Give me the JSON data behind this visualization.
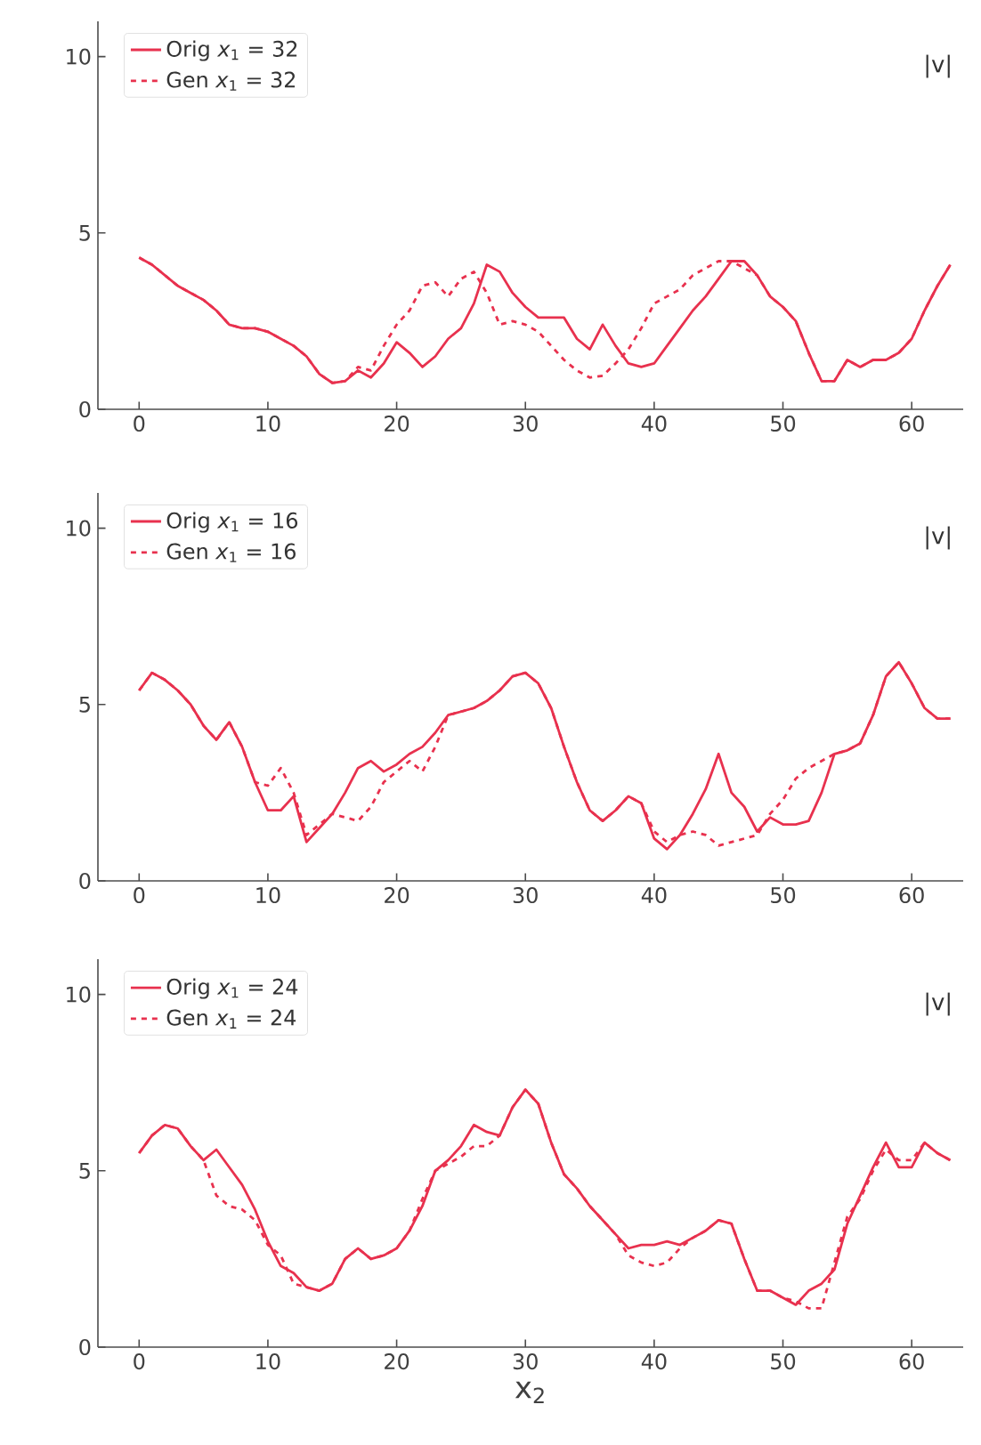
{
  "chart_data": [
    {
      "type": "line",
      "x": [
        0,
        1,
        2,
        3,
        4,
        5,
        6,
        7,
        8,
        9,
        10,
        11,
        12,
        13,
        14,
        15,
        16,
        17,
        18,
        19,
        20,
        21,
        22,
        23,
        24,
        25,
        26,
        27,
        28,
        29,
        30,
        31,
        32,
        33,
        34,
        35,
        36,
        37,
        38,
        39,
        40,
        41,
        42,
        43,
        44,
        45,
        46,
        47,
        48,
        49,
        50,
        51,
        52,
        53,
        54,
        55,
        56,
        57,
        58,
        59,
        60,
        61,
        62,
        63
      ],
      "series": [
        {
          "name": "Orig *x*$_{1}$ = 32",
          "color": "#e8314e",
          "line_style": "solid",
          "values": [
            4.3,
            4.1,
            3.8,
            3.5,
            3.3,
            3.1,
            2.8,
            2.4,
            2.3,
            2.3,
            2.2,
            2.0,
            1.8,
            1.5,
            1.0,
            0.75,
            0.8,
            1.1,
            0.9,
            1.3,
            1.9,
            1.6,
            1.2,
            1.5,
            2.0,
            2.3,
            3.0,
            4.1,
            3.9,
            3.3,
            2.9,
            2.6,
            2.6,
            2.6,
            2.0,
            1.7,
            2.4,
            1.8,
            1.3,
            1.2,
            1.3,
            1.8,
            2.3,
            2.8,
            3.2,
            3.7,
            4.2,
            4.2,
            3.8,
            3.2,
            2.9,
            2.5,
            1.6,
            0.8,
            0.8,
            1.4,
            1.2,
            1.4,
            1.4,
            1.6,
            2.0,
            2.8,
            3.5,
            4.1
          ]
        },
        {
          "name": "Gen *x*$_{1}$ = 32",
          "color": "#e8314e",
          "line_style": "dashed",
          "values": [
            4.3,
            4.1,
            3.8,
            3.5,
            3.3,
            3.1,
            2.8,
            2.4,
            2.3,
            2.3,
            2.2,
            2.0,
            1.8,
            1.5,
            1.0,
            0.75,
            0.8,
            1.2,
            1.1,
            1.8,
            2.4,
            2.8,
            3.5,
            3.6,
            3.2,
            3.7,
            3.9,
            3.3,
            2.4,
            2.5,
            2.4,
            2.2,
            1.8,
            1.4,
            1.1,
            0.9,
            0.95,
            1.3,
            1.7,
            2.3,
            3.0,
            3.2,
            3.4,
            3.8,
            4.0,
            4.2,
            4.2,
            4.0,
            3.8,
            3.2,
            2.9,
            2.5,
            1.6,
            0.8,
            0.8,
            1.4,
            1.2,
            1.4,
            1.4,
            1.6,
            2.0,
            2.8,
            3.5,
            4.1
          ]
        }
      ],
      "xlim": [
        -3.2,
        64
      ],
      "ylim": [
        0,
        11
      ],
      "xticks": [
        0,
        10,
        20,
        30,
        40,
        50,
        60
      ],
      "yticks": [
        0,
        5,
        10
      ],
      "legend": "top left",
      "annotations": [
        "|v|"
      ]
    },
    {
      "type": "line",
      "x": [
        0,
        1,
        2,
        3,
        4,
        5,
        6,
        7,
        8,
        9,
        10,
        11,
        12,
        13,
        14,
        15,
        16,
        17,
        18,
        19,
        20,
        21,
        22,
        23,
        24,
        25,
        26,
        27,
        28,
        29,
        30,
        31,
        32,
        33,
        34,
        35,
        36,
        37,
        38,
        39,
        40,
        41,
        42,
        43,
        44,
        45,
        46,
        47,
        48,
        49,
        50,
        51,
        52,
        53,
        54,
        55,
        56,
        57,
        58,
        59,
        60,
        61,
        62,
        63
      ],
      "series": [
        {
          "name": "Orig *x*$_{1}$ = 16",
          "color": "#e8314e",
          "line_style": "solid",
          "values": [
            5.4,
            5.9,
            5.7,
            5.4,
            5.0,
            4.4,
            4.0,
            4.5,
            3.8,
            2.8,
            2.0,
            2.0,
            2.4,
            1.1,
            1.5,
            1.9,
            2.5,
            3.2,
            3.4,
            3.1,
            3.3,
            3.6,
            3.8,
            4.2,
            4.7,
            4.8,
            4.9,
            5.1,
            5.4,
            5.8,
            5.9,
            5.6,
            4.9,
            3.8,
            2.8,
            2.0,
            1.7,
            2.0,
            2.4,
            2.2,
            1.2,
            0.9,
            1.3,
            1.9,
            2.6,
            3.6,
            2.5,
            2.1,
            1.4,
            1.8,
            1.6,
            1.6,
            1.7,
            2.5,
            3.6,
            3.7,
            3.9,
            4.7,
            5.8,
            6.2,
            5.6,
            4.9,
            4.6,
            4.6
          ]
        },
        {
          "name": "Gen *x*$_{1}$ = 16",
          "color": "#e8314e",
          "line_style": "dashed",
          "values": [
            5.4,
            5.9,
            5.7,
            5.4,
            5.0,
            4.4,
            4.0,
            4.5,
            3.8,
            2.8,
            2.7,
            3.2,
            2.5,
            1.3,
            1.6,
            1.9,
            1.8,
            1.7,
            2.1,
            2.8,
            3.1,
            3.4,
            3.1,
            3.8,
            4.7,
            4.8,
            4.9,
            5.1,
            5.4,
            5.8,
            5.9,
            5.6,
            4.9,
            3.8,
            2.8,
            2.0,
            1.7,
            2.0,
            2.4,
            2.2,
            1.4,
            1.1,
            1.3,
            1.4,
            1.3,
            1.0,
            1.1,
            1.2,
            1.3,
            1.9,
            2.3,
            2.9,
            3.2,
            3.4,
            3.6,
            3.7,
            3.9,
            4.7,
            5.8,
            6.2,
            5.6,
            4.9,
            4.6,
            4.6
          ]
        }
      ],
      "xlim": [
        -3.2,
        64
      ],
      "ylim": [
        0,
        11
      ],
      "xticks": [
        0,
        10,
        20,
        30,
        40,
        50,
        60
      ],
      "yticks": [
        0,
        5,
        10
      ],
      "legend": "top left",
      "annotations": [
        "|v|"
      ]
    },
    {
      "type": "line",
      "x": [
        0,
        1,
        2,
        3,
        4,
        5,
        6,
        7,
        8,
        9,
        10,
        11,
        12,
        13,
        14,
        15,
        16,
        17,
        18,
        19,
        20,
        21,
        22,
        23,
        24,
        25,
        26,
        27,
        28,
        29,
        30,
        31,
        32,
        33,
        34,
        35,
        36,
        37,
        38,
        39,
        40,
        41,
        42,
        43,
        44,
        45,
        46,
        47,
        48,
        49,
        50,
        51,
        52,
        53,
        54,
        55,
        56,
        57,
        58,
        59,
        60,
        61,
        62,
        63
      ],
      "series": [
        {
          "name": "Orig *x*$_{1}$ = 24",
          "color": "#e8314e",
          "line_style": "solid",
          "values": [
            5.5,
            6.0,
            6.3,
            6.2,
            5.7,
            5.3,
            5.6,
            5.1,
            4.6,
            3.9,
            3.0,
            2.3,
            2.1,
            1.7,
            1.6,
            1.8,
            2.5,
            2.8,
            2.5,
            2.6,
            2.8,
            3.3,
            4.0,
            5.0,
            5.3,
            5.7,
            6.3,
            6.1,
            6.0,
            6.8,
            7.3,
            6.9,
            5.8,
            4.9,
            4.5,
            4.0,
            3.6,
            3.2,
            2.8,
            2.9,
            2.9,
            3.0,
            2.9,
            3.1,
            3.3,
            3.6,
            3.5,
            2.5,
            1.6,
            1.6,
            1.4,
            1.2,
            1.6,
            1.8,
            2.2,
            3.5,
            4.3,
            5.1,
            5.8,
            5.1,
            5.1,
            5.8,
            5.5,
            5.3
          ]
        },
        {
          "name": "Gen *x*$_{1}$ = 24",
          "color": "#e8314e",
          "line_style": "dashed",
          "values": [
            5.5,
            6.0,
            6.3,
            6.2,
            5.7,
            5.3,
            4.3,
            4.0,
            3.9,
            3.6,
            2.9,
            2.6,
            1.8,
            1.7,
            1.6,
            1.8,
            2.5,
            2.8,
            2.5,
            2.6,
            2.8,
            3.3,
            4.2,
            5.0,
            5.2,
            5.4,
            5.7,
            5.7,
            6.0,
            6.8,
            7.3,
            6.9,
            5.8,
            4.9,
            4.5,
            4.0,
            3.6,
            3.2,
            2.6,
            2.4,
            2.3,
            2.4,
            2.8,
            3.1,
            3.3,
            3.6,
            3.5,
            2.5,
            1.6,
            1.6,
            1.4,
            1.3,
            1.1,
            1.1,
            2.4,
            3.7,
            4.2,
            5.0,
            5.6,
            5.3,
            5.3,
            5.8,
            5.5,
            5.3
          ]
        }
      ],
      "xlim": [
        -3.2,
        64
      ],
      "ylim": [
        0,
        11
      ],
      "xticks": [
        0,
        10,
        20,
        30,
        40,
        50,
        60
      ],
      "yticks": [
        0,
        5,
        10
      ],
      "legend": "top left",
      "annotations": [
        "|v|"
      ],
      "xlabel": "x$_{2}$"
    }
  ]
}
